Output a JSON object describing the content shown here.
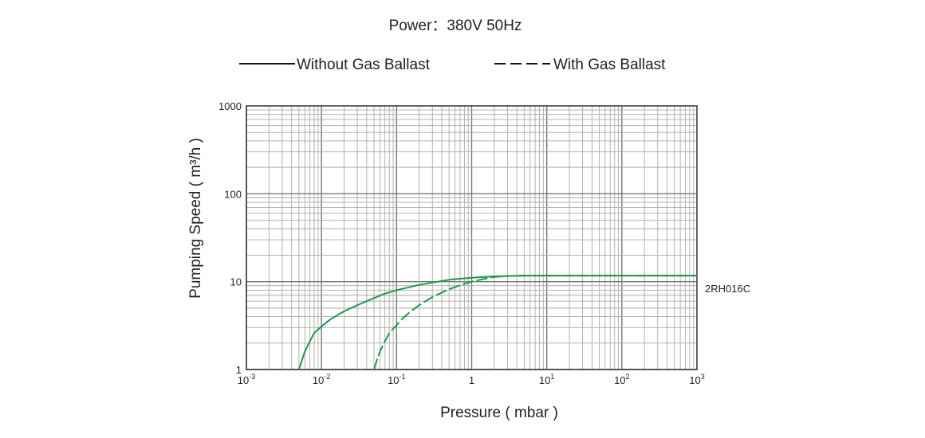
{
  "chart_data": {
    "type": "line",
    "title": "Power：380V 50Hz",
    "xlabel": "Pressure ( mbar )",
    "ylabel": "Pumping Speed ( m³/h )",
    "x_scale": "log",
    "y_scale": "log",
    "xlim": [
      0.001,
      1000
    ],
    "ylim": [
      1,
      1000
    ],
    "grid": true,
    "legend_position": "top-center",
    "x_ticks": [
      {
        "base": "10",
        "exp": "-3"
      },
      {
        "base": "10",
        "exp": "-2"
      },
      {
        "base": "10",
        "exp": "-1"
      },
      {
        "base": "1",
        "exp": ""
      },
      {
        "base": "10",
        "exp": "1"
      },
      {
        "base": "10",
        "exp": "2"
      },
      {
        "base": "10",
        "exp": "3"
      }
    ],
    "y_ticks": [
      "1",
      "10",
      "100",
      "1000"
    ],
    "legend": [
      {
        "label": "Without Gas Ballast",
        "style": "solid"
      },
      {
        "label": "With Gas Ballast",
        "style": "dashed"
      }
    ],
    "series_label": "2RH016C",
    "curve_color": "#1a9a4a",
    "series": [
      {
        "style": "solid",
        "points": [
          [
            0.005,
            1.0
          ],
          [
            0.006,
            1.6
          ],
          [
            0.007,
            2.1
          ],
          [
            0.008,
            2.6
          ],
          [
            0.01,
            3.1
          ],
          [
            0.013,
            3.7
          ],
          [
            0.02,
            4.6
          ],
          [
            0.03,
            5.4
          ],
          [
            0.05,
            6.5
          ],
          [
            0.07,
            7.3
          ],
          [
            0.1,
            8.0
          ],
          [
            0.2,
            9.2
          ],
          [
            0.5,
            10.5
          ],
          [
            1,
            11.1
          ],
          [
            2,
            11.5
          ],
          [
            3,
            11.6
          ],
          [
            5,
            11.7
          ],
          [
            10,
            11.7
          ],
          [
            100,
            11.7
          ],
          [
            1000,
            11.7
          ]
        ]
      },
      {
        "style": "dashed",
        "points": [
          [
            0.05,
            1.0
          ],
          [
            0.055,
            1.3
          ],
          [
            0.06,
            1.6
          ],
          [
            0.07,
            2.1
          ],
          [
            0.08,
            2.6
          ],
          [
            0.1,
            3.2
          ],
          [
            0.12,
            3.8
          ],
          [
            0.15,
            4.5
          ],
          [
            0.2,
            5.4
          ],
          [
            0.3,
            6.7
          ],
          [
            0.5,
            8.2
          ],
          [
            0.7,
            9.1
          ],
          [
            1,
            10.0
          ],
          [
            1.5,
            10.8
          ],
          [
            2,
            11.3
          ],
          [
            3,
            11.6
          ],
          [
            5,
            11.7
          ],
          [
            10,
            11.7
          ],
          [
            100,
            11.7
          ],
          [
            1000,
            11.7
          ]
        ]
      }
    ]
  }
}
